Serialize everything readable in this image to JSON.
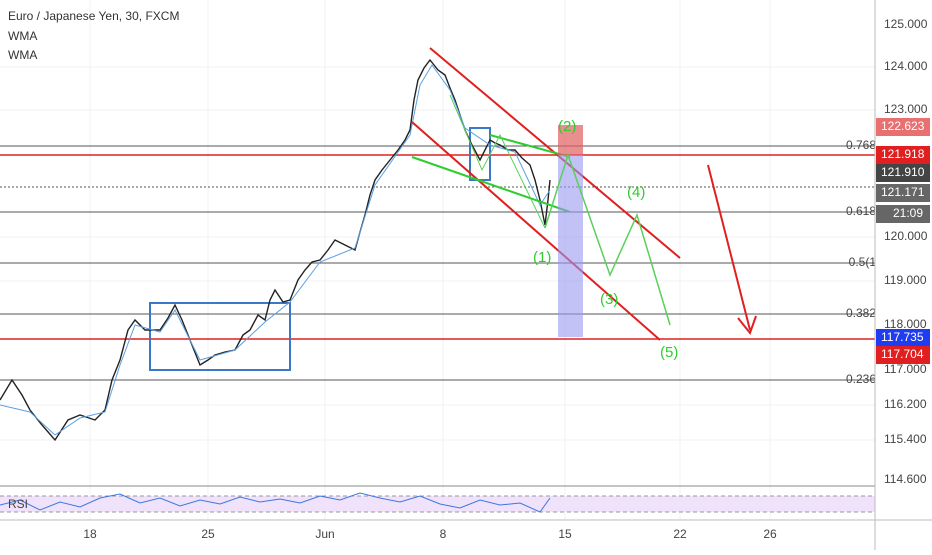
{
  "header": {
    "title": "Euro / Japanese Yen, 30, FXCM",
    "indicators": [
      "WMA",
      "WMA"
    ]
  },
  "price_axis": [
    "125.000",
    "124.000",
    "123.000",
    "120.000",
    "119.000",
    "118.000",
    "117.000",
    "116.200",
    "115.400",
    "114.600"
  ],
  "price_tags": [
    "122.623",
    "121.918",
    "121.910",
    "121.171",
    "21:09",
    "117.735",
    "117.704"
  ],
  "fib_levels": [
    "0.768",
    "0.618",
    "0.5(1",
    "0.382",
    "0.236"
  ],
  "time_axis": [
    "18",
    "25",
    "Jun",
    "8",
    "15",
    "22",
    "26"
  ],
  "wave_labels": [
    "(1)",
    "(2)",
    "(3)",
    "(4)",
    "(5)"
  ],
  "rsi_label": "RSI"
}
